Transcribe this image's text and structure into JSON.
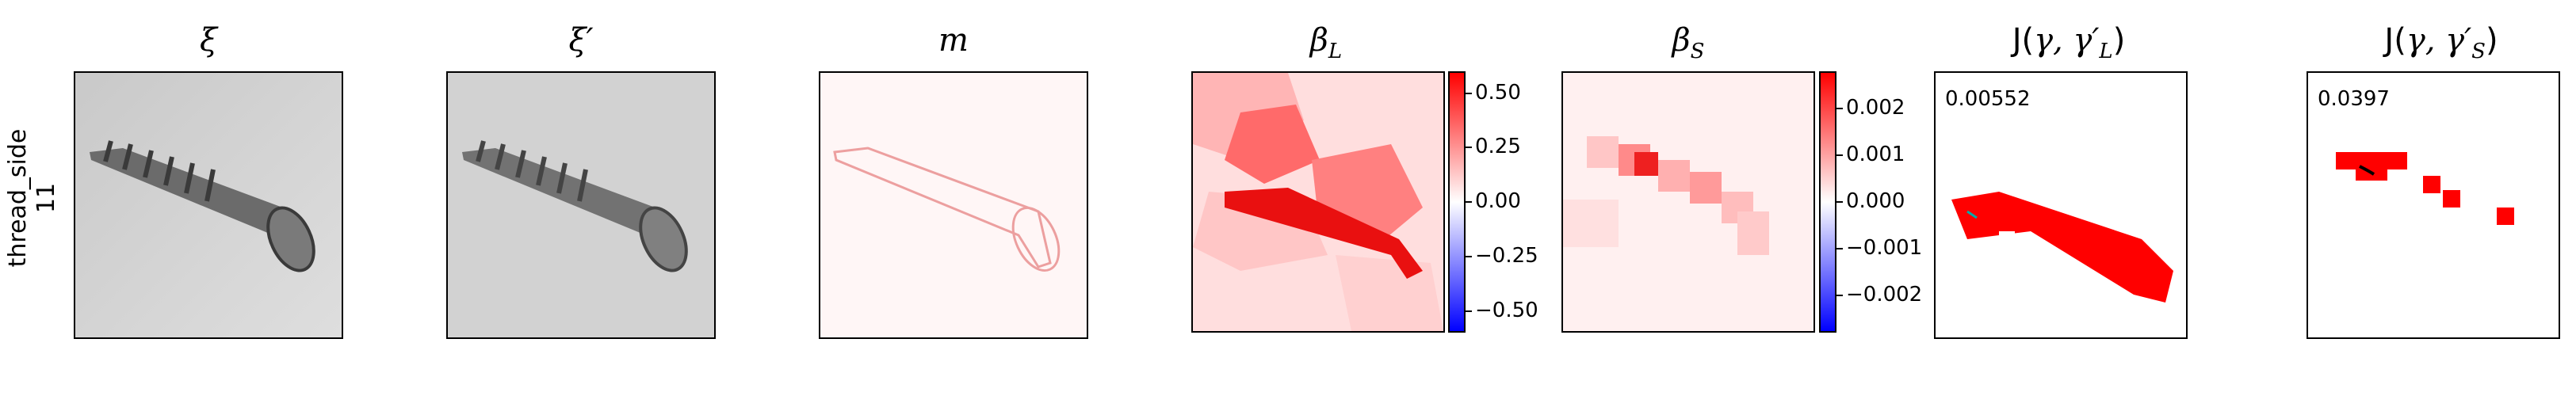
{
  "row": {
    "label_line1": "thread_side",
    "label_line2": "11"
  },
  "panels": {
    "xi": {
      "title": "ξ"
    },
    "xi_prime": {
      "title": "ξ′"
    },
    "m": {
      "title": "m"
    },
    "beta_L": {
      "title_main": "β",
      "title_sub": "L"
    },
    "beta_S": {
      "title_main": "β",
      "title_sub": "S"
    },
    "j_L": {
      "title_prefix": "J(",
      "title_gamma": "γ, γ′",
      "title_sub": "L",
      "title_suffix": ")",
      "score": "0.00552"
    },
    "j_S": {
      "title_prefix": "J(",
      "title_gamma": "γ, γ′",
      "title_sub": "S",
      "title_suffix": ")",
      "score": "0.0397"
    }
  },
  "colorbar_L": {
    "ticks": [
      "0.50",
      "0.25",
      "0.00",
      "−0.25",
      "−0.50"
    ],
    "tick_values": [
      0.5,
      0.25,
      0.0,
      -0.25,
      -0.5
    ],
    "range": [
      -0.6,
      0.6
    ]
  },
  "colorbar_S": {
    "ticks": [
      "0.002",
      "0.001",
      "0.000",
      "−0.001",
      "−0.002"
    ],
    "tick_values": [
      0.002,
      0.001,
      0.0,
      -0.001,
      -0.002
    ],
    "range": [
      -0.0028,
      0.0028
    ]
  },
  "colors": {
    "positive": "#ff0000",
    "negative": "#0000ff",
    "neutral": "#ffffff"
  }
}
